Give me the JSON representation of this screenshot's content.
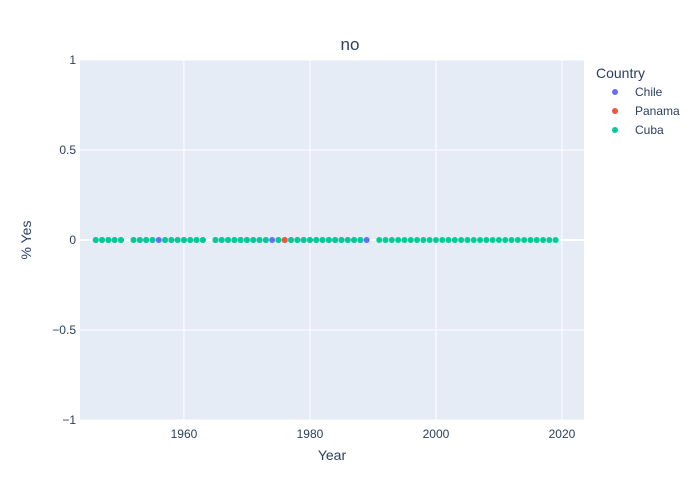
{
  "chart_data": {
    "type": "scatter",
    "title": "no",
    "xlabel": "Year",
    "ylabel": "% Yes",
    "xlim": [
      1943.5,
      2023.5
    ],
    "ylim": [
      -1,
      1
    ],
    "xticks": [
      1960,
      1980,
      2000,
      2020
    ],
    "yticks": [
      1,
      0.5,
      0,
      -0.5,
      -1
    ],
    "ytick_labels": [
      "1",
      "0.5",
      "0",
      "−0.5",
      "−1"
    ],
    "grid": true,
    "background": "#e5ecf6",
    "legend": {
      "title": "Country",
      "placement": "top-right"
    },
    "series": [
      {
        "name": "Chile",
        "color": "#636efa",
        "x": [
          1946,
          1947,
          1948,
          1949,
          1950,
          1952,
          1953,
          1954,
          1955,
          1956,
          1957,
          1958,
          1959,
          1960,
          1961,
          1962,
          1963,
          1965,
          1966,
          1967,
          1968,
          1969,
          1970,
          1971,
          1972,
          1973,
          1974,
          1975,
          1976,
          1977,
          1978,
          1979,
          1980,
          1981,
          1982,
          1983,
          1984,
          1985,
          1986,
          1987,
          1988,
          1989
        ],
        "y": [
          0,
          0,
          0,
          0,
          0,
          0,
          0,
          0,
          0,
          0,
          0,
          0,
          0,
          0,
          0,
          0,
          0,
          0,
          0,
          0,
          0,
          0,
          0,
          0,
          0,
          0,
          0,
          0,
          0,
          0,
          0,
          0,
          0,
          0,
          0,
          0,
          0,
          0,
          0,
          0,
          0,
          0
        ]
      },
      {
        "name": "Panama",
        "color": "#ef553b",
        "x": [
          1976
        ],
        "y": [
          0
        ]
      },
      {
        "name": "Cuba",
        "color": "#00cc96",
        "x": [
          1946,
          1947,
          1948,
          1949,
          1950,
          1952,
          1953,
          1954,
          1955,
          1957,
          1958,
          1959,
          1960,
          1961,
          1962,
          1963,
          1965,
          1966,
          1967,
          1968,
          1969,
          1970,
          1971,
          1972,
          1973,
          1975,
          1977,
          1978,
          1979,
          1980,
          1981,
          1982,
          1983,
          1984,
          1985,
          1986,
          1987,
          1988,
          1991,
          1992,
          1993,
          1994,
          1995,
          1996,
          1997,
          1998,
          1999,
          2000,
          2001,
          2002,
          2003,
          2004,
          2005,
          2006,
          2007,
          2008,
          2009,
          2010,
          2011,
          2012,
          2013,
          2014,
          2015,
          2016,
          2017,
          2018,
          2019
        ],
        "y": [
          0,
          0,
          0,
          0,
          0,
          0,
          0,
          0,
          0,
          0,
          0,
          0,
          0,
          0,
          0,
          0,
          0,
          0,
          0,
          0,
          0,
          0,
          0,
          0,
          0,
          0,
          0,
          0,
          0,
          0,
          0,
          0,
          0,
          0,
          0,
          0,
          0,
          0,
          0,
          0,
          0,
          0,
          0,
          0,
          0,
          0,
          0,
          0,
          0,
          0,
          0,
          0,
          0,
          0,
          0,
          0,
          0,
          0,
          0,
          0,
          0,
          0,
          0,
          0,
          0,
          0,
          0
        ]
      }
    ]
  }
}
